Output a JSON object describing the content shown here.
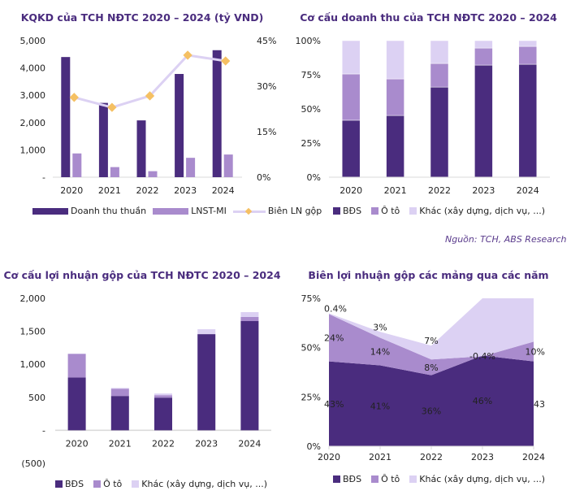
{
  "colors": {
    "bds": "#4a2c7e",
    "oto": "#a98bcd",
    "khac": "#dcd1f3",
    "revenue": "#4a2c7e",
    "profit": "#a98bcd",
    "margin_line": "#dcd1f3",
    "margin_marker": "#f5c063",
    "axis": "#d9d9d9",
    "title": "#4a2c7e"
  },
  "source": "Nguồn: TCH, ABS Research",
  "chart_data": [
    {
      "id": "kqkd",
      "type": "bar",
      "title": "KQKD của TCH NĐTC 2020 – 2024 (tỷ VND)",
      "categories": [
        "2020",
        "2021",
        "2022",
        "2023",
        "2024"
      ],
      "series": [
        {
          "name": "Doanh thu thuần",
          "axis": "left",
          "type": "bar",
          "values": [
            4400,
            2720,
            2080,
            3780,
            4650
          ]
        },
        {
          "name": "LNST-MI",
          "axis": "left",
          "type": "bar",
          "values": [
            870,
            370,
            220,
            710,
            830
          ]
        },
        {
          "name": "Biên LN gộp",
          "axis": "right",
          "type": "line",
          "values": [
            26.3,
            23.0,
            26.8,
            40.2,
            38.3
          ]
        }
      ],
      "ylim": [
        0,
        5000
      ],
      "yticks": [
        "-",
        "1,000",
        "2,000",
        "3,000",
        "4,000",
        "5,000"
      ],
      "ylim_right": [
        0,
        45
      ],
      "yticks_right": [
        "0%",
        "15%",
        "30%",
        "45%"
      ],
      "xlabel": "",
      "ylabel": "",
      "legend": "bottom",
      "grid": false
    },
    {
      "id": "cocau-dt",
      "type": "bar",
      "stacked": true,
      "title": "Cơ cấu doanh thu của TCH NĐTC 2020 – 2024",
      "categories": [
        "2020",
        "2021",
        "2022",
        "2023",
        "2024"
      ],
      "series": [
        {
          "name": "BĐS",
          "values": [
            41.7,
            45.2,
            66.0,
            82.1,
            82.7
          ]
        },
        {
          "name": "Ô tô",
          "values": [
            33.9,
            26.8,
            17.3,
            12.5,
            13.1
          ]
        },
        {
          "name": "Khác (xây dựng, dịch vụ, ...)",
          "values": [
            24.4,
            28.0,
            16.7,
            5.4,
            4.2
          ]
        }
      ],
      "ylim": [
        0,
        100
      ],
      "yticks": [
        "0%",
        "25%",
        "50%",
        "75%",
        "100%"
      ],
      "legend": "bottom",
      "grid": false
    },
    {
      "id": "cocau-ln",
      "type": "bar",
      "stacked": true,
      "title": "Cơ cấu lợi nhuận gộp của TCH NĐTC 2020 – 2024",
      "categories": [
        "2020",
        "2021",
        "2022",
        "2023",
        "2024"
      ],
      "series": [
        {
          "name": "BĐS",
          "values": [
            800,
            520,
            495,
            1457,
            1655
          ]
        },
        {
          "name": "Ô tô",
          "values": [
            358,
            110,
            37,
            0,
            62
          ]
        },
        {
          "name": "Khác (xây dựng, dịch vụ, ...)",
          "values": [
            4,
            12,
            25,
            74,
            74
          ]
        }
      ],
      "ylim": [
        -500,
        2000
      ],
      "yticks": [
        "(500)",
        "-",
        "500",
        "1,000",
        "1,500",
        "2,000"
      ],
      "legend": "bottom",
      "grid": false
    },
    {
      "id": "bien-ln",
      "type": "area",
      "stacked": true,
      "title": "Biên lợi nhuận gộp các mảng qua các năm",
      "categories": [
        "2020",
        "2021",
        "2022",
        "2023",
        "2024"
      ],
      "series": [
        {
          "name": "BĐS",
          "values": [
            43,
            41,
            36,
            46,
            43
          ],
          "labels": [
            "43%",
            "41%",
            "36%",
            "46%",
            "43"
          ]
        },
        {
          "name": "Ô tô",
          "values": [
            24,
            14,
            8,
            -0.4,
            10
          ],
          "labels": [
            "24%",
            "14%",
            "8%",
            "-0.4%",
            "10%"
          ]
        },
        {
          "name": "Khác (xây dựng, dịch vụ, ...)",
          "values": [
            0.4,
            3,
            7,
            60,
            60
          ],
          "labels": [
            "0.4%",
            "3%",
            "7%",
            "",
            ""
          ]
        }
      ],
      "ylim": [
        0,
        75
      ],
      "yticks": [
        "0%",
        "25%",
        "50%",
        "75%"
      ],
      "legend": "bottom",
      "grid": false
    }
  ]
}
